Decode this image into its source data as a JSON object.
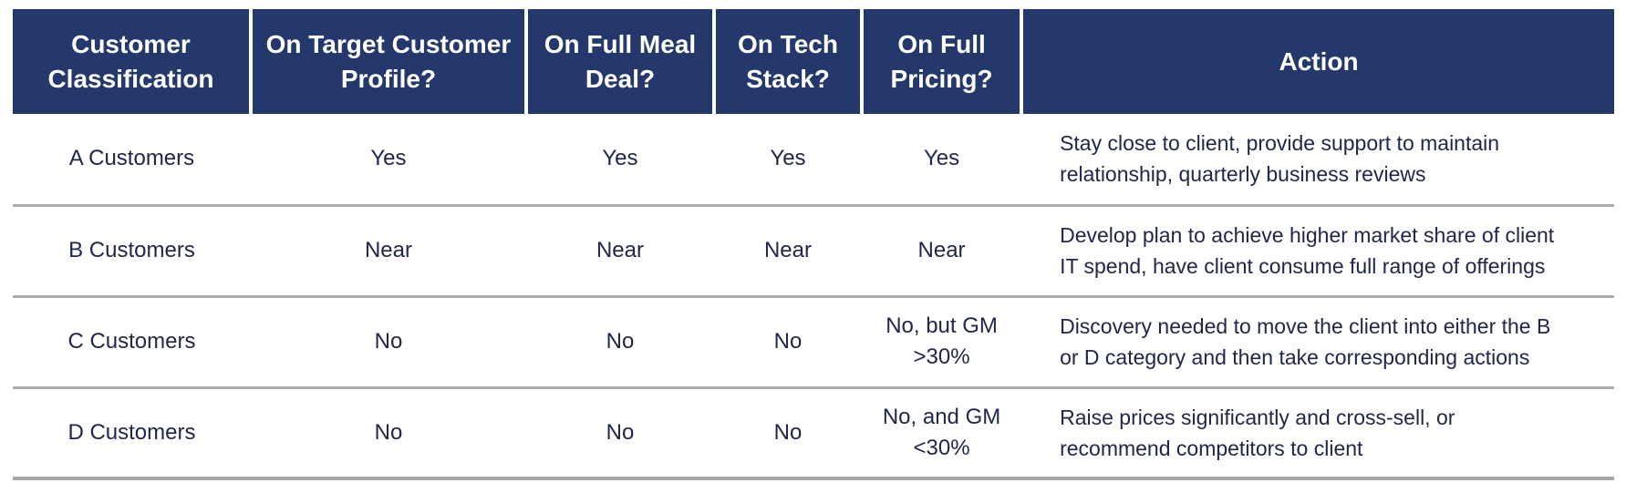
{
  "colors": {
    "header_background": "#24386B",
    "header_text": "#FFFFFF",
    "body_text": "#20274A",
    "row_separator": "#ACACAC"
  },
  "table": {
    "headers": [
      "Customer Classification",
      "On Target Customer Profile?",
      "On Full Meal Deal?",
      "On Tech Stack?",
      "On Full Pricing?",
      "Action"
    ],
    "rows": [
      {
        "classification": "A Customers",
        "on_target": "Yes",
        "meal_deal": "Yes",
        "tech_stack": "Yes",
        "pricing": "Yes",
        "action": "Stay close to client, provide support to maintain\nrelationship, quarterly business reviews"
      },
      {
        "classification": "B Customers",
        "on_target": "Near",
        "meal_deal": "Near",
        "tech_stack": "Near",
        "pricing": "Near",
        "action": "Develop plan to achieve higher market share of client\nIT spend, have client consume full range of offerings"
      },
      {
        "classification": "C Customers",
        "on_target": "No",
        "meal_deal": "No",
        "tech_stack": "No",
        "pricing": "No, but GM\n>30%",
        "action": "Discovery needed to move the client into either the B\nor D category and then take corresponding actions"
      },
      {
        "classification": "D Customers",
        "on_target": "No",
        "meal_deal": "No",
        "tech_stack": "No",
        "pricing": "No, and GM\n<30%",
        "action": "Raise prices significantly and cross-sell, or\nrecommend competitors to client"
      }
    ]
  }
}
